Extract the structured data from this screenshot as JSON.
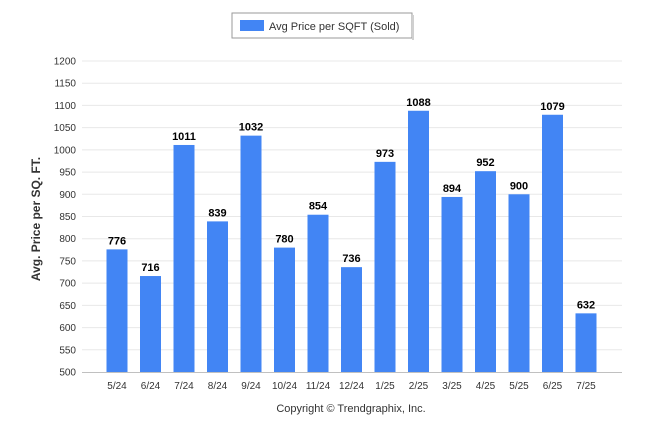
{
  "colors": {
    "bar": "#4285f4",
    "grid": "#e8e8e8",
    "axis": "#c0c0c0"
  },
  "footer": {
    "copyright": "Copyright © Trendgraphix, Inc."
  },
  "chart_data": {
    "type": "bar",
    "title": "",
    "xlabel": "",
    "ylabel": "Avg. Price per SQ. FT.",
    "legend": {
      "position": "top-center",
      "entries": [
        "Avg Price per SQFT (Sold)"
      ]
    },
    "grid": true,
    "ylim": [
      500,
      1200
    ],
    "yticks": [
      500,
      550,
      600,
      650,
      700,
      750,
      800,
      850,
      900,
      950,
      1000,
      1050,
      1100,
      1150,
      1200
    ],
    "categories": [
      "5/24",
      "6/24",
      "7/24",
      "8/24",
      "9/24",
      "10/24",
      "11/24",
      "12/24",
      "1/25",
      "2/25",
      "3/25",
      "4/25",
      "5/25",
      "6/25",
      "7/25"
    ],
    "series": [
      {
        "name": "Avg Price per SQFT (Sold)",
        "values": [
          776,
          716,
          1011,
          839,
          1032,
          780,
          854,
          736,
          973,
          1088,
          894,
          952,
          900,
          1079,
          632
        ]
      }
    ]
  }
}
